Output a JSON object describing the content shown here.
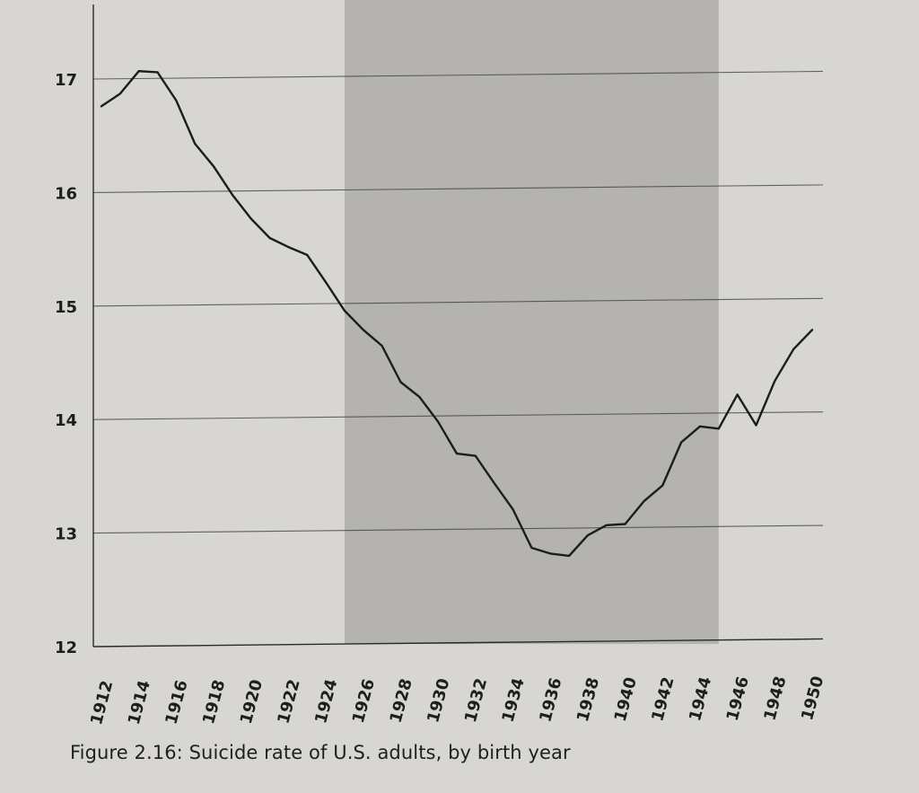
{
  "chart_data": {
    "type": "line",
    "title": "",
    "xlabel": "",
    "ylabel": "",
    "xlim": [
      1912,
      1950
    ],
    "ylim": [
      12,
      17.5
    ],
    "y_ticks": [
      12,
      13,
      14,
      15,
      16,
      17
    ],
    "x_ticks": [
      1912,
      1914,
      1916,
      1918,
      1920,
      1922,
      1924,
      1926,
      1928,
      1930,
      1932,
      1934,
      1936,
      1938,
      1940,
      1942,
      1944,
      1946,
      1948,
      1950
    ],
    "grid": "horizontal",
    "shaded_region": {
      "from": 1925,
      "to": 1945
    },
    "series": [
      {
        "x": [
          1912,
          1913,
          1914,
          1915,
          1916,
          1917,
          1918,
          1919,
          1920,
          1921,
          1922,
          1923,
          1924,
          1925,
          1926,
          1927,
          1928,
          1929,
          1930,
          1931,
          1932,
          1933,
          1934,
          1935,
          1936,
          1937,
          1938,
          1939,
          1940,
          1941,
          1942,
          1943,
          1944,
          1945,
          1946,
          1947,
          1948,
          1949,
          1950
        ],
        "y": [
          16.76,
          16.87,
          17.07,
          17.06,
          16.81,
          16.43,
          16.23,
          15.98,
          15.77,
          15.6,
          15.52,
          15.45,
          15.21,
          14.96,
          14.79,
          14.65,
          14.33,
          14.2,
          13.98,
          13.7,
          13.68,
          13.44,
          13.21,
          12.87,
          12.82,
          12.8,
          12.98,
          13.07,
          13.08,
          13.28,
          13.42,
          13.8,
          13.94,
          13.92,
          14.22,
          13.95,
          14.34,
          14.62,
          14.79
        ]
      }
    ]
  },
  "caption": "Figure 2.16: Suicide rate of U.S. adults, by birth year",
  "colors": {
    "line": "#1c1c1c",
    "shade": "#a9a7a4",
    "page": "#d8d6d3",
    "grid": "#3a3a3a"
  }
}
